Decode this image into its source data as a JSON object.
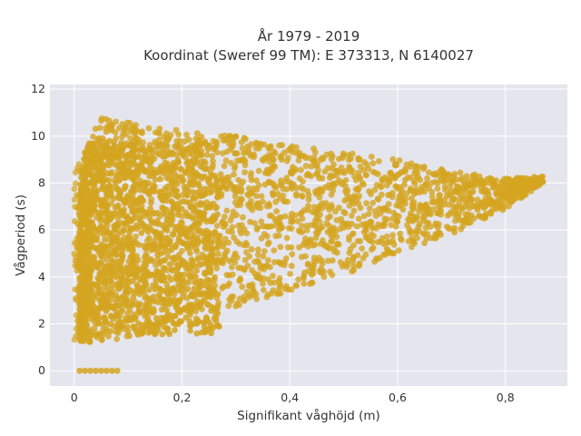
{
  "chart_data": {
    "type": "scatter",
    "title_line1": "År 1979 - 2019",
    "title_line2": "Koordinat (Sweref 99 TM): E 373313, N 6140027",
    "xlabel": "Signifikant våghöjd (m)",
    "ylabel": "Vågperiod (s)",
    "xlim": [
      -0.045,
      0.915
    ],
    "ylim": [
      -0.65,
      12.2
    ],
    "xticks": [
      0,
      0.2,
      0.4,
      0.6,
      0.8
    ],
    "xtick_labels": [
      "0",
      "0,2",
      "0,4",
      "0,6",
      "0,8"
    ],
    "yticks": [
      0,
      2,
      4,
      6,
      8,
      10,
      12
    ],
    "ytick_labels": [
      "0",
      "2",
      "4",
      "6",
      "8",
      "10",
      "12"
    ],
    "grid": true,
    "marker_color": "#D4A520",
    "plot_background": "#E5E5EE",
    "zero_period_points": {
      "x": [
        0.01,
        0.02,
        0.03,
        0.04,
        0.05,
        0.06,
        0.07,
        0.08
      ],
      "y": [
        0,
        0,
        0,
        0,
        0,
        0,
        0,
        0
      ]
    },
    "envelope": {
      "description_x": [
        0.0,
        0.02,
        0.05,
        0.1,
        0.15,
        0.2,
        0.3,
        0.4,
        0.5,
        0.6,
        0.7,
        0.8,
        0.87
      ],
      "upper_y": [
        6.0,
        9.5,
        10.8,
        10.6,
        10.5,
        10.2,
        10.0,
        9.6,
        9.3,
        9.0,
        8.5,
        8.2,
        8.3
      ],
      "lower_y": [
        1.3,
        1.2,
        1.2,
        1.4,
        1.6,
        2.0,
        2.7,
        3.4,
        4.1,
        4.9,
        5.8,
        6.9,
        8.0
      ]
    }
  }
}
